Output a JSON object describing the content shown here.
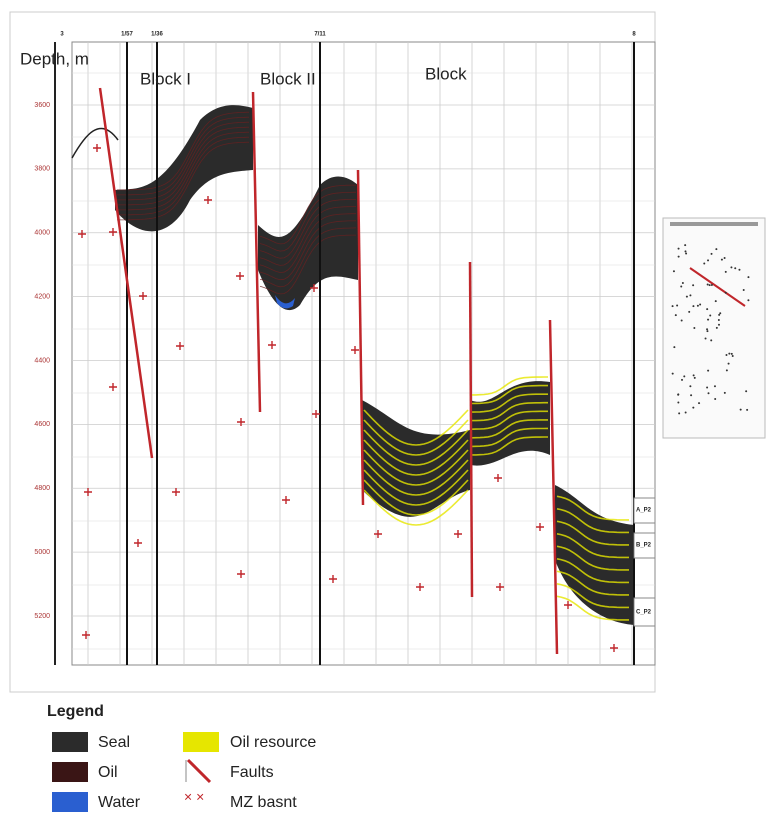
{
  "wells": [
    "3",
    "1/57",
    "1/36",
    "7/11",
    "8"
  ],
  "depth_axis": {
    "label": "Depth, m",
    "ticks": [
      3600,
      3800,
      4000,
      4200,
      4400,
      4600,
      4800,
      5000,
      5200
    ]
  },
  "blocks": [
    "Block I",
    "Block II",
    "Block"
  ],
  "horizons": [
    "A_P2",
    "B_P2",
    "C_P2"
  ],
  "legend": {
    "title": "Legend",
    "items": [
      "Seal",
      "Oil",
      "Water",
      "Oil resource",
      "Faults",
      "MZ basnt"
    ]
  }
}
